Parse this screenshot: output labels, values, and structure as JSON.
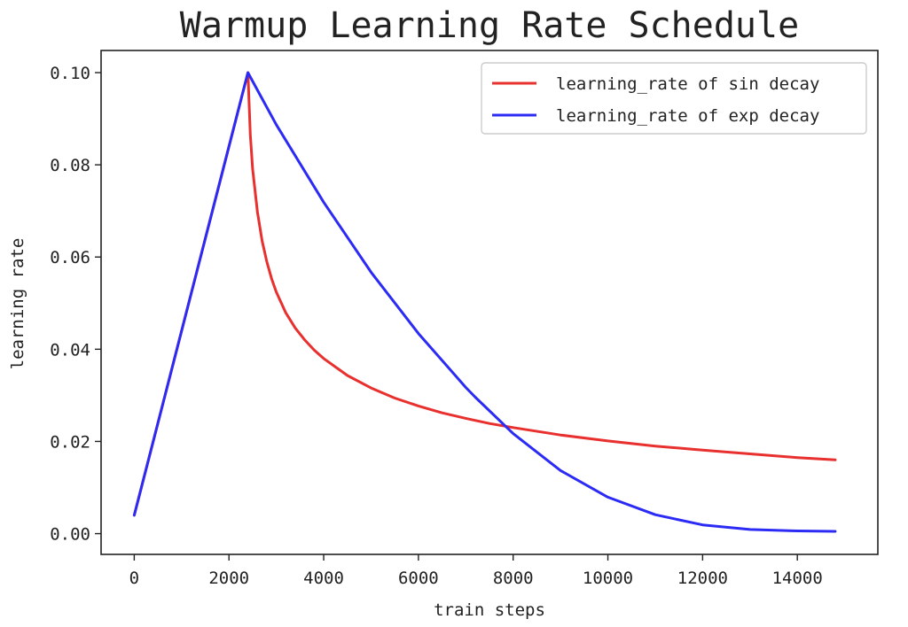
{
  "chart_data": {
    "type": "line",
    "title": "Warmup Learning Rate Schedule",
    "xlabel": "train steps",
    "ylabel": "learning rate",
    "xlim": [
      -700,
      15700
    ],
    "ylim": [
      -0.0045,
      0.1048
    ],
    "xticks": [
      0,
      2000,
      4000,
      6000,
      8000,
      10000,
      12000,
      14000
    ],
    "xtick_labels": [
      "0",
      "2000",
      "4000",
      "6000",
      "8000",
      "10000",
      "12000",
      "14000"
    ],
    "yticks": [
      0.0,
      0.02,
      0.04,
      0.06,
      0.08,
      0.1
    ],
    "ytick_labels": [
      "0.00",
      "0.02",
      "0.04",
      "0.06",
      "0.08",
      "0.10"
    ],
    "grid": false,
    "legend_position": "top-right",
    "series": [
      {
        "name": "learning_rate of sin decay",
        "color": "#e8302e",
        "x": [
          0,
          2400,
          2450,
          2500,
          2600,
          2700,
          2800,
          2900,
          3000,
          3200,
          3400,
          3600,
          3800,
          4000,
          4500,
          5000,
          5500,
          6000,
          6500,
          7000,
          7500,
          8000,
          9000,
          10000,
          11000,
          12000,
          13000,
          14000,
          14800
        ],
        "y": [
          0.004,
          0.1,
          0.0865,
          0.0791,
          0.0698,
          0.0635,
          0.0589,
          0.0553,
          0.0524,
          0.0479,
          0.0446,
          0.042,
          0.0398,
          0.038,
          0.0343,
          0.0316,
          0.0294,
          0.0277,
          0.0262,
          0.025,
          0.0239,
          0.023,
          0.0214,
          0.0201,
          0.019,
          0.0181,
          0.0173,
          0.0165,
          0.016
        ]
      },
      {
        "name": "learning_rate of exp decay",
        "color": "#2b2bf5",
        "x": [
          0,
          2400,
          3000,
          4000,
          5000,
          6000,
          7000,
          7200,
          8000,
          9000,
          10000,
          11000,
          12000,
          13000,
          14000,
          14800
        ],
        "y": [
          0.004,
          0.1,
          0.0887,
          0.0719,
          0.0567,
          0.0434,
          0.0317,
          0.0296,
          0.0217,
          0.0137,
          0.0079,
          0.0041,
          0.0019,
          0.0009,
          0.0006,
          0.0005
        ]
      }
    ]
  }
}
